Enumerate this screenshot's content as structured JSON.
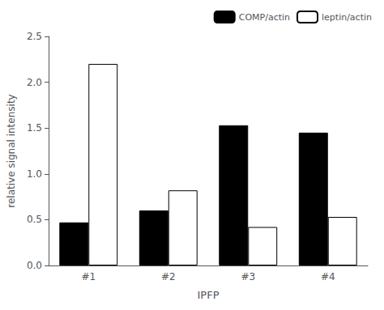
{
  "chart_data": {
    "type": "bar",
    "categories": [
      "#1",
      "#2",
      "#3",
      "#4"
    ],
    "series": [
      {
        "name": "COMP/actin",
        "color": "#000000",
        "values": [
          0.47,
          0.6,
          1.53,
          1.45
        ]
      },
      {
        "name": "leptin/actin",
        "color": "#ffffff",
        "values": [
          2.2,
          0.82,
          0.42,
          0.53
        ]
      }
    ],
    "xlabel": "IPFP",
    "ylabel": "relative signal intensity",
    "ylim": [
      0,
      2.5
    ],
    "yticks": [
      {
        "value": 0.0,
        "label": "0.0"
      },
      {
        "value": 0.5,
        "label": "0.5"
      },
      {
        "value": 1.0,
        "label": "1.0"
      },
      {
        "value": 1.5,
        "label": "1.5"
      },
      {
        "value": 2.0,
        "label": "2.0"
      },
      {
        "value": 2.5,
        "label": "2.5"
      }
    ],
    "legend": "upper right",
    "grid": false
  }
}
